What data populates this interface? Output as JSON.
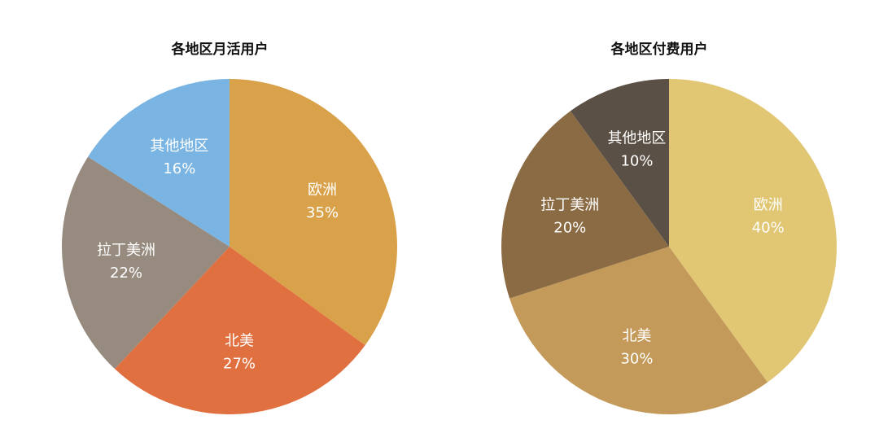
{
  "chart_data": [
    {
      "type": "pie",
      "title": "各地区月活用户",
      "categories": [
        "欧洲",
        "北美",
        "拉丁美洲",
        "其他地区"
      ],
      "values": [
        35,
        27,
        22,
        16
      ],
      "labels": [
        "35%",
        "27%",
        "22%",
        "16%"
      ],
      "colors": [
        "#D9A24A",
        "#E07040",
        "#978B80",
        "#79B4E2"
      ]
    },
    {
      "type": "pie",
      "title": "各地区付费用户",
      "categories": [
        "欧洲",
        "北美",
        "拉丁美洲",
        "其他地区"
      ],
      "values": [
        40,
        30,
        20,
        10
      ],
      "labels": [
        "40%",
        "30%",
        "20%",
        "10%"
      ],
      "colors": [
        "#E1C673",
        "#C49A5A",
        "#8B6B43",
        "#5B5045"
      ]
    }
  ]
}
